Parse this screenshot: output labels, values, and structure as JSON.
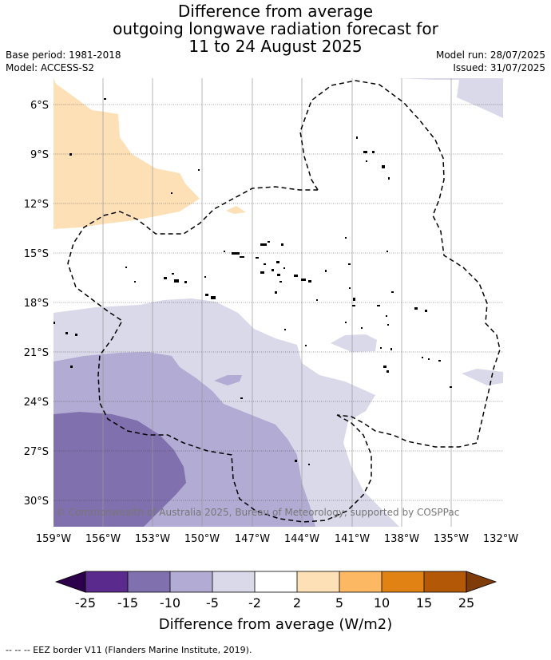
{
  "title": {
    "line1": "Difference from average",
    "line2": "outgoing longwave radiation forecast for",
    "line3": "11 to 24 August 2025"
  },
  "meta": {
    "base_period": "Base period: 1981-2018",
    "model": "Model: ACCESS-S2",
    "model_run": "Model run: 28/07/2025",
    "issued": "Issued: 31/07/2025"
  },
  "map": {
    "lat_labels": [
      "6°S",
      "9°S",
      "12°S",
      "15°S",
      "18°S",
      "21°S",
      "24°S",
      "27°S",
      "30°S"
    ],
    "lon_labels": [
      "159°W",
      "156°W",
      "153°W",
      "150°W",
      "147°W",
      "144°W",
      "141°W",
      "138°W",
      "135°W",
      "132°W"
    ],
    "lat_range": [
      -31.5,
      -4.5
    ],
    "lon_range": [
      -159,
      -132
    ],
    "copyright": "© Commonwealth of Australia 2025, Bureau of Meteorology, supported by COSPPac"
  },
  "colorbar": {
    "ticks": [
      "-25",
      "-15",
      "-10",
      "-5",
      "-2",
      "2",
      "5",
      "10",
      "15",
      "25"
    ],
    "colors": [
      "#5a2a8c",
      "#8070ad",
      "#b2abd3",
      "#d9d9ea",
      "#ffffff",
      "#fde0b6",
      "#fdb863",
      "#e08214",
      "#b35806"
    ],
    "under_color": "#2d004b",
    "over_color": "#7f3b08",
    "label": "Difference from average (W/m2)"
  },
  "footer": "--  --  -- EEZ border V11 (Flanders Marine Institute, 2019)."
}
